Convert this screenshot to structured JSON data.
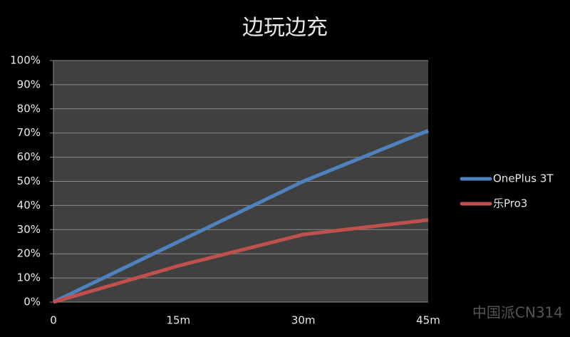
{
  "chart_data": {
    "type": "line",
    "title": "边玩边充",
    "categories": [
      "0",
      "15m",
      "30m",
      "45m"
    ],
    "series": [
      {
        "name": "OnePlus 3T",
        "color": "#4f81bd",
        "values": [
          0,
          25,
          50,
          71
        ]
      },
      {
        "name": "乐Pro3",
        "color": "#c0504d",
        "values": [
          0,
          15,
          28,
          34
        ]
      }
    ],
    "ylim": [
      0,
      100
    ],
    "yticks": [
      {
        "value": 0,
        "label": "0%"
      },
      {
        "value": 10,
        "label": "10%"
      },
      {
        "value": 20,
        "label": "20%"
      },
      {
        "value": 30,
        "label": "30%"
      },
      {
        "value": 40,
        "label": "40%"
      },
      {
        "value": 50,
        "label": "50%"
      },
      {
        "value": 60,
        "label": "60%"
      },
      {
        "value": 70,
        "label": "70%"
      },
      {
        "value": 80,
        "label": "80%"
      },
      {
        "value": 90,
        "label": "90%"
      },
      {
        "value": 100,
        "label": "100%"
      }
    ],
    "grid": true,
    "legend": "right",
    "watermark": "中国派CN314"
  }
}
